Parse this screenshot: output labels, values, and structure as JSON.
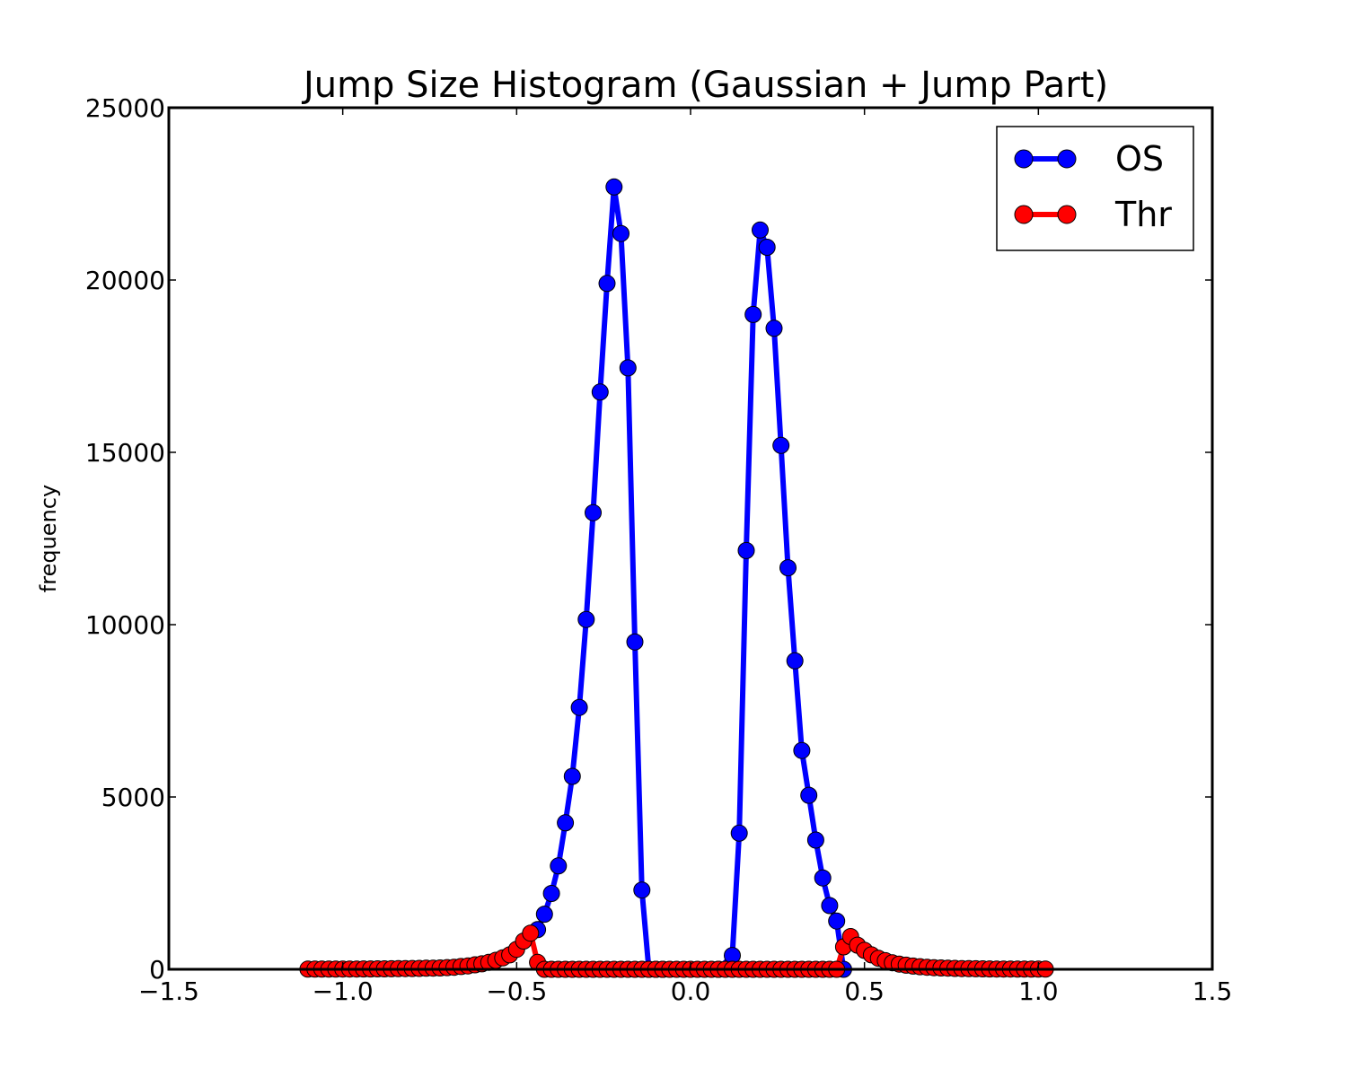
{
  "chart_data": {
    "type": "line",
    "title": "Jump Size Histogram (Gaussian + Jump Part)",
    "xlabel": "",
    "ylabel": "frequency",
    "xlim": [
      -1.5,
      1.5
    ],
    "ylim": [
      0,
      25000
    ],
    "xticks": [
      -1.5,
      -1.0,
      -0.5,
      0.0,
      0.5,
      1.0,
      1.5
    ],
    "xtick_labels": [
      "−1.5",
      "−1.0",
      "−0.5",
      "0.0",
      "0.5",
      "1.0",
      "1.5"
    ],
    "yticks": [
      0,
      5000,
      10000,
      15000,
      20000,
      25000
    ],
    "ytick_labels": [
      "0",
      "5000",
      "10000",
      "15000",
      "20000",
      "25000"
    ],
    "grid": false,
    "legend_position": "top-right",
    "series": [
      {
        "name": "OS",
        "color": "#0000ff",
        "x": [
          -0.44,
          -0.42,
          -0.4,
          -0.38,
          -0.36,
          -0.34,
          -0.32,
          -0.3,
          -0.28,
          -0.26,
          -0.24,
          -0.22,
          -0.2,
          -0.18,
          -0.16,
          -0.14,
          -0.12,
          -0.1,
          -0.08,
          0.08,
          0.12,
          0.14,
          0.16,
          0.18,
          0.2,
          0.22,
          0.24,
          0.26,
          0.28,
          0.3,
          0.32,
          0.34,
          0.36,
          0.38,
          0.4,
          0.42,
          0.44
        ],
        "y": [
          1150,
          1600,
          2200,
          3000,
          4250,
          5600,
          7600,
          10150,
          13250,
          16750,
          19900,
          22700,
          21350,
          17450,
          9500,
          2300,
          0,
          0,
          0,
          0,
          400,
          3950,
          12150,
          19000,
          21450,
          20950,
          18600,
          15200,
          11650,
          8950,
          6350,
          5050,
          3750,
          2650,
          1850,
          1400,
          0
        ]
      },
      {
        "name": "Thr",
        "color": "#ff0000",
        "x": [
          -1.1,
          -1.08,
          -1.06,
          -1.04,
          -1.02,
          -1.0,
          -0.98,
          -0.96,
          -0.94,
          -0.92,
          -0.9,
          -0.88,
          -0.86,
          -0.84,
          -0.82,
          -0.8,
          -0.78,
          -0.76,
          -0.74,
          -0.72,
          -0.7,
          -0.68,
          -0.66,
          -0.64,
          -0.62,
          -0.6,
          -0.58,
          -0.56,
          -0.54,
          -0.52,
          -0.5,
          -0.48,
          -0.46,
          -0.44,
          -0.42,
          -0.4,
          -0.38,
          -0.36,
          -0.34,
          -0.32,
          -0.3,
          -0.28,
          -0.26,
          -0.24,
          -0.22,
          -0.2,
          -0.18,
          -0.16,
          -0.14,
          -0.12,
          -0.1,
          -0.08,
          -0.06,
          -0.04,
          -0.02,
          0.0,
          0.02,
          0.04,
          0.06,
          0.08,
          0.1,
          0.12,
          0.14,
          0.16,
          0.18,
          0.2,
          0.22,
          0.24,
          0.26,
          0.28,
          0.3,
          0.32,
          0.34,
          0.36,
          0.38,
          0.4,
          0.42,
          0.44,
          0.46,
          0.48,
          0.5,
          0.52,
          0.54,
          0.56,
          0.58,
          0.6,
          0.62,
          0.64,
          0.66,
          0.68,
          0.7,
          0.72,
          0.74,
          0.76,
          0.78,
          0.8,
          0.82,
          0.84,
          0.86,
          0.88,
          0.9,
          0.92,
          0.94,
          0.96,
          0.98,
          1.0,
          1.02
        ],
        "y": [
          5,
          5,
          5,
          6,
          6,
          7,
          8,
          9,
          10,
          11,
          12,
          14,
          16,
          18,
          20,
          23,
          26,
          30,
          35,
          40,
          50,
          60,
          80,
          100,
          130,
          160,
          200,
          260,
          330,
          420,
          580,
          820,
          1050,
          200,
          0,
          0,
          0,
          0,
          0,
          0,
          0,
          0,
          0,
          0,
          0,
          0,
          0,
          0,
          0,
          0,
          0,
          0,
          0,
          0,
          0,
          0,
          0,
          0,
          0,
          0,
          0,
          0,
          0,
          0,
          0,
          0,
          0,
          0,
          0,
          0,
          0,
          0,
          0,
          0,
          0,
          0,
          0,
          650,
          950,
          700,
          550,
          420,
          320,
          250,
          190,
          150,
          120,
          95,
          75,
          60,
          48,
          40,
          33,
          27,
          22,
          18,
          15,
          12,
          10,
          9,
          8,
          7,
          6,
          6,
          5,
          5,
          5
        ]
      }
    ]
  }
}
